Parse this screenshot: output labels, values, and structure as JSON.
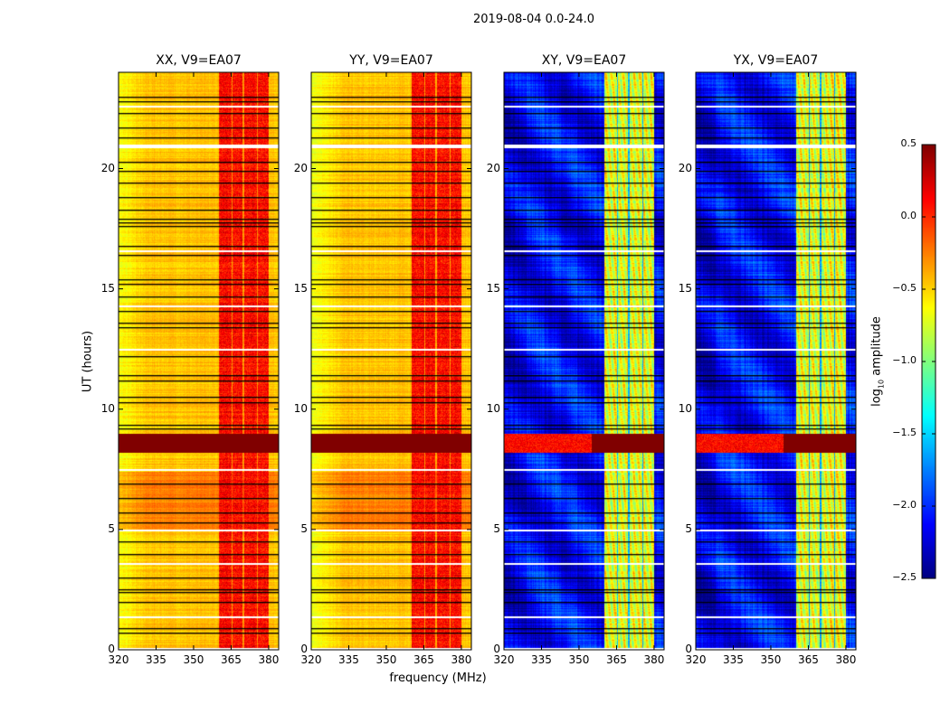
{
  "chart_data": {
    "type": "heatmap",
    "suptitle": "2019-08-04 0.0-24.0",
    "xlabel": "frequency (MHz)",
    "ylabel": "UT (hours)",
    "xlim": [
      320,
      384
    ],
    "ylim": [
      0,
      24
    ],
    "xticks": [
      "320",
      "335",
      "350",
      "365",
      "380"
    ],
    "yticks": [
      "0",
      "5",
      "10",
      "15",
      "20"
    ],
    "colorbar": {
      "label_prefix": "log",
      "label_sub": "10",
      "label_suffix": " amplitude",
      "range": [
        -2.5,
        0.5
      ],
      "ticks": [
        "0.5",
        "0.0",
        "−0.5",
        "−1.0",
        "−1.5",
        "−2.0",
        "−2.5"
      ],
      "colormap": "jet"
    },
    "rfi_band_mhz": [
      [
        360,
        365
      ],
      [
        365.5,
        369.5
      ],
      [
        370,
        375
      ],
      [
        375.5,
        380
      ]
    ],
    "bright_rows_hours": [
      8.2,
      9.0
    ],
    "flagged_black_hours": [
      0.7,
      0.9,
      2.0,
      2.4,
      2.5,
      3.0,
      4.0,
      4.5,
      5.3,
      5.7,
      6.3,
      6.9,
      9.2,
      9.35,
      10.3,
      10.5,
      11.2,
      11.4,
      12.2,
      13.4,
      13.6,
      14.1,
      14.7,
      15.2,
      15.4,
      16.4,
      16.8,
      17.6,
      17.75,
      17.9,
      18.3,
      18.8,
      19.4,
      19.9,
      20.3,
      21.3,
      21.7,
      22.3,
      22.8,
      23.0
    ],
    "flagged_white_hours": [
      1.4,
      3.6,
      5.0,
      7.5,
      12.5,
      14.3,
      16.6,
      21.0,
      22.6
    ],
    "panels": [
      {
        "title": "XX, V9=EA07",
        "base": -0.45,
        "edge": -0.65,
        "band": 0.1,
        "gap": -0.3
      },
      {
        "title": "YY, V9=EA07",
        "base": -0.45,
        "edge": -0.7,
        "band": 0.1,
        "gap": -0.35
      },
      {
        "title": "XY, V9=EA07",
        "base": -2.1,
        "edge": -2.3,
        "band": -0.7,
        "gap": -1.6
      },
      {
        "title": "YX, V9=EA07",
        "base": -2.1,
        "edge": -2.3,
        "band": -0.7,
        "gap": -1.6
      }
    ]
  }
}
